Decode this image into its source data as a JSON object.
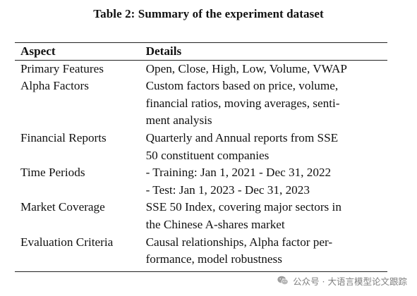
{
  "caption": "Table 2: Summary of the experiment dataset",
  "table": {
    "headers": [
      "Aspect",
      "Details"
    ],
    "rows": [
      {
        "aspect": "Primary Features",
        "details": [
          "Open, Close, High, Low, Volume, VWAP"
        ]
      },
      {
        "aspect": "Alpha Factors",
        "details": [
          "Custom factors based on price, volume,",
          "financial ratios, moving averages, senti-",
          "ment analysis"
        ]
      },
      {
        "aspect": "Financial Reports",
        "details": [
          "Quarterly and Annual reports from SSE",
          "50 constituent companies"
        ]
      },
      {
        "aspect": "Time Periods",
        "details": [
          "- Training: Jan 1, 2021 - Dec 31, 2022",
          "- Test: Jan 1, 2023 - Dec 31, 2023"
        ]
      },
      {
        "aspect": "Market Coverage",
        "details": [
          "SSE 50 Index, covering major sectors in",
          "the Chinese A-shares market"
        ]
      },
      {
        "aspect": "Evaluation Criteria",
        "details": [
          "Causal relationships, Alpha factor per-",
          "formance, model robustness"
        ]
      }
    ]
  },
  "watermark": {
    "text": "公众号 · 大语言模型论文跟踪",
    "icon": "wechat-icon"
  }
}
